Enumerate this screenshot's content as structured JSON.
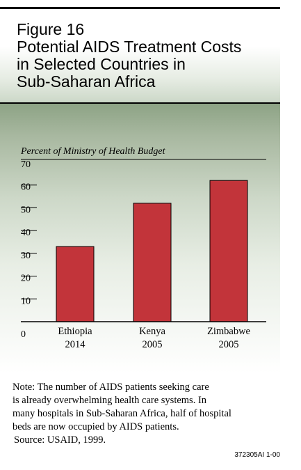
{
  "title": {
    "figure_label": "Figure 16",
    "lines": [
      "Potential AIDS Treatment Costs",
      "in Selected Countries in",
      "Sub-Saharan Africa"
    ]
  },
  "chart_data": {
    "type": "bar",
    "ylabel": "Percent of Ministry of Health Budget",
    "categories": [
      {
        "name": "Ethiopia",
        "year": "2014"
      },
      {
        "name": "Kenya",
        "year": "2005"
      },
      {
        "name": "Zimbabwe",
        "year": "2005"
      }
    ],
    "values": [
      33,
      52,
      62
    ],
    "ylim": [
      0,
      70
    ],
    "yticks": [
      0,
      10,
      20,
      30,
      40,
      50,
      60,
      70
    ],
    "bar_color": "#c2343a",
    "grid": false
  },
  "note": {
    "lines": [
      "Note: The number of AIDS patients seeking care",
      "is already overwhelming health care systems. In",
      "many hospitals in Sub-Saharan Africa, half of hospital",
      "beds are now occupied by AIDS patients."
    ],
    "source": "Source: USAID, 1999."
  },
  "doc_code": "372305AI 1-00"
}
